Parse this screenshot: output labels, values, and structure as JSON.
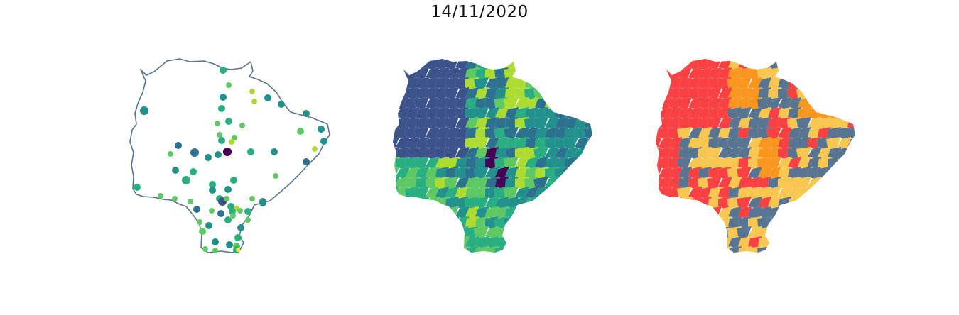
{
  "title": "14/11/2020",
  "colors": {
    "outline": "#5a7492",
    "viridis": [
      "#440154",
      "#3b528b",
      "#2c728e",
      "#21918c",
      "#28ae80",
      "#5ec962",
      "#addc30",
      "#fde725"
    ],
    "risk": {
      "red": "#f94144",
      "orange": "#f8961e",
      "yellow": "#f9c74f",
      "slate": "#577590"
    }
  },
  "maps": [
    {
      "name": "points-map",
      "type": "proportional-dots"
    },
    {
      "name": "viridis-choropleth",
      "type": "choropleth"
    },
    {
      "name": "risk-choropleth",
      "type": "choropleth"
    }
  ]
}
